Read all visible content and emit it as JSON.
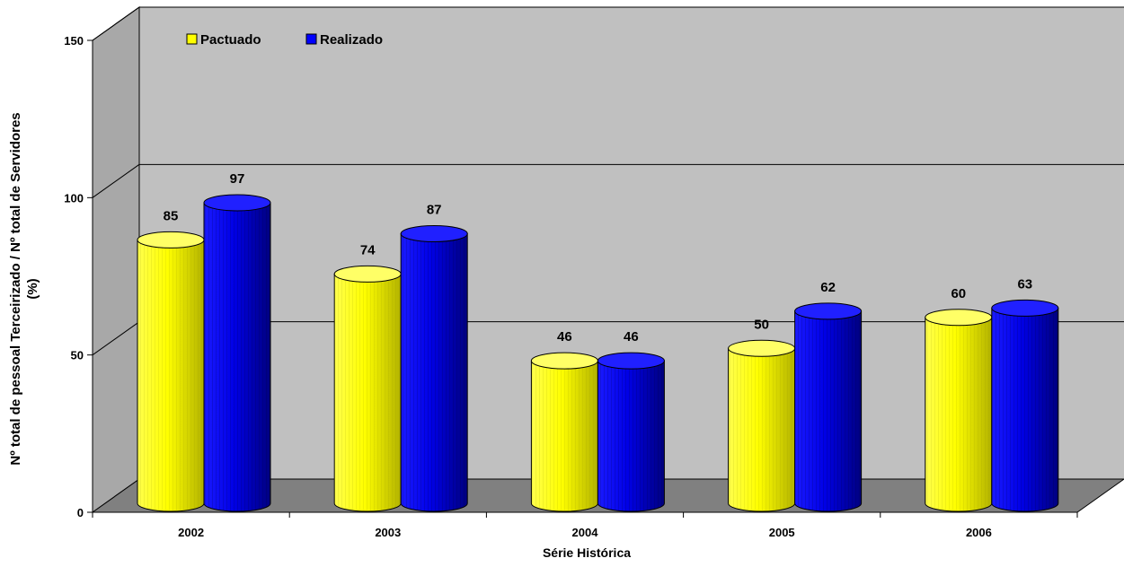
{
  "chart_data": {
    "type": "bar",
    "categories": [
      "2002",
      "2003",
      "2004",
      "2005",
      "2006"
    ],
    "series": [
      {
        "name": "Pactuado",
        "values": [
          85,
          74,
          46,
          50,
          60
        ]
      },
      {
        "name": "Realizado",
        "values": [
          97,
          87,
          46,
          62,
          63
        ]
      }
    ],
    "xlabel": "Série Histórica",
    "ylabel_line1": "Nº total de pessoal Terceirizado / Nº total de Servidores",
    "ylabel_line2": "(%)",
    "yticks": [
      "0",
      "50",
      "100",
      "150"
    ],
    "ylim": [
      0,
      150
    ],
    "grid": true,
    "legend_position": "top-left",
    "colors": {
      "Pactuado": "#ffff00",
      "Realizado": "#0000ff",
      "wall": "#c0c0c0",
      "floor": "#808080"
    }
  }
}
